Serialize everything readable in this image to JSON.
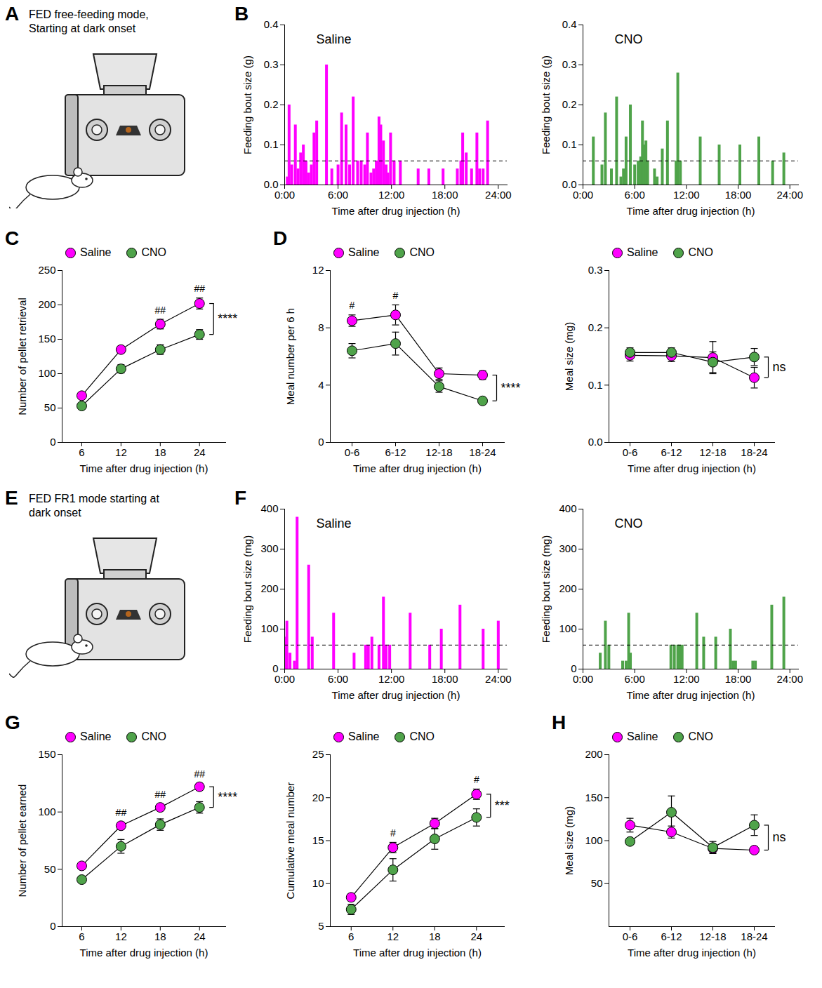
{
  "chart_data": [
    {
      "panel": "B",
      "type": "bar",
      "title": "Saline",
      "x_label": "Time after drug injection (h)",
      "y_label": "Feeding bout size (g)",
      "xlim": [
        0,
        25
      ],
      "xticks": [
        {
          "value": 0,
          "label": "0:00"
        },
        {
          "value": 6,
          "label": "6:00"
        },
        {
          "value": 12,
          "label": "12:00"
        },
        {
          "value": 18,
          "label": "18:00"
        },
        {
          "value": 24,
          "label": "24:00"
        }
      ],
      "ylim": [
        0,
        0.4
      ],
      "yticks": [
        {
          "value": 0,
          "label": "0.0"
        },
        0.1,
        0.2,
        0.3,
        0.4
      ],
      "reference_line": 0.06,
      "color": "#ff00ff",
      "x": [
        0.3,
        0.5,
        0.8,
        1.2,
        1.5,
        1.8,
        2.1,
        2.4,
        2.7,
        3.0,
        3.3,
        3.6,
        4.7,
        5.3,
        6.0,
        6.4,
        6.9,
        7.3,
        7.7,
        8.2,
        8.6,
        9.0,
        9.3,
        9.7,
        10.0,
        10.3,
        10.6,
        10.8,
        11.1,
        11.4,
        11.6,
        11.9,
        12.3,
        13.0,
        15.0,
        16.2,
        17.8,
        19.4,
        19.8,
        20.0,
        20.4,
        21.0,
        21.6,
        21.9,
        22.3,
        22.8
      ],
      "values": [
        0.02,
        0.2,
        0.05,
        0.15,
        0.04,
        0.08,
        0.1,
        0.06,
        0.03,
        0.05,
        0.13,
        0.16,
        0.3,
        0.04,
        0.05,
        0.18,
        0.15,
        0.05,
        0.22,
        0.06,
        0.06,
        0.05,
        0.13,
        0.03,
        0.04,
        0.06,
        0.17,
        0.15,
        0.11,
        0.05,
        0.03,
        0.13,
        0.06,
        0.06,
        0.04,
        0.04,
        0.04,
        0.04,
        0.06,
        0.13,
        0.08,
        0.04,
        0.13,
        0.04,
        0.04,
        0.16
      ]
    },
    {
      "type": "bar",
      "title": "CNO",
      "x_label": "Time after drug injection (h)",
      "y_label": "Feeding bout size (g)",
      "xlim": [
        0,
        25
      ],
      "xticks": [
        {
          "value": 0,
          "label": "0:00"
        },
        {
          "value": 6,
          "label": "6:00"
        },
        {
          "value": 12,
          "label": "12:00"
        },
        {
          "value": 18,
          "label": "18:00"
        },
        {
          "value": 24,
          "label": "24:00"
        }
      ],
      "ylim": [
        0,
        0.4
      ],
      "yticks": [
        {
          "value": 0,
          "label": "0.0"
        },
        0.1,
        0.2,
        0.3,
        0.4
      ],
      "reference_line": 0.06,
      "color": "#4fa34a",
      "x": [
        1.2,
        2.2,
        2.6,
        3.3,
        3.9,
        4.4,
        4.7,
        5.0,
        5.5,
        6.0,
        6.4,
        6.7,
        6.9,
        7.1,
        7.3,
        7.5,
        8.3,
        8.6,
        9.2,
        9.8,
        10.8,
        11.0,
        11.3,
        13.6,
        15.8,
        18.2,
        20.4,
        22.0,
        23.3
      ],
      "values": [
        0.12,
        0.05,
        0.18,
        0.04,
        0.22,
        0.02,
        0.04,
        0.12,
        0.2,
        0.05,
        0.06,
        0.07,
        0.16,
        0.1,
        0.11,
        0.06,
        0.04,
        0.02,
        0.09,
        0.16,
        0.06,
        0.28,
        0.06,
        0.12,
        0.1,
        0.1,
        0.12,
        0.06,
        0.08
      ]
    },
    {
      "panel": "C",
      "type": "line",
      "x_label": "Time after drug injection (h)",
      "y_label": "Number of pellet retrieval",
      "x": [
        6,
        12,
        18,
        24
      ],
      "xlim": [
        3,
        28
      ],
      "xticks": [
        6,
        12,
        18,
        24
      ],
      "ylim": [
        0,
        250
      ],
      "yticks": [
        0,
        50,
        100,
        150,
        200,
        250
      ],
      "legend": "top",
      "series": [
        {
          "name": "Saline",
          "color": "#ff00ff",
          "values": [
            68,
            135,
            172,
            202
          ],
          "errors": [
            3,
            5,
            7,
            8
          ]
        },
        {
          "name": "CNO",
          "color": "#4fa34a",
          "values": [
            53,
            107,
            135,
            157
          ],
          "errors": [
            4,
            6,
            7,
            7
          ]
        }
      ],
      "annotations": [
        {
          "x": 18,
          "text": "##"
        },
        {
          "x": 24,
          "text": "##"
        }
      ],
      "comparison": "****"
    },
    {
      "panel": "D",
      "type": "line",
      "x_label": "Time after drug injection (h)",
      "y_label": "Meal number per 6 h",
      "categories": [
        "0-6",
        "6-12",
        "12-18",
        "18-24"
      ],
      "ylim": [
        0,
        12
      ],
      "yticks": [
        0,
        4,
        8,
        12
      ],
      "legend": "top",
      "series": [
        {
          "name": "Saline",
          "color": "#ff00ff",
          "values": [
            8.5,
            8.9,
            4.8,
            4.7
          ],
          "errors": [
            0.4,
            0.7,
            0.4,
            0.3
          ]
        },
        {
          "name": "CNO",
          "color": "#4fa34a",
          "values": [
            6.4,
            6.9,
            3.9,
            2.9
          ],
          "errors": [
            0.5,
            0.8,
            0.4,
            0.2
          ]
        }
      ],
      "annotations": [
        {
          "x": "0-6",
          "text": "#"
        },
        {
          "x": "6-12",
          "text": "#"
        }
      ],
      "comparison": "****"
    },
    {
      "type": "line",
      "x_label": "Time after drug injection (h)",
      "y_label": "Meal size (mg)",
      "categories": [
        "0-6",
        "6-12",
        "12-18",
        "18-24"
      ],
      "ylim": [
        0,
        0.3
      ],
      "yticks": [
        {
          "value": 0,
          "label": "0.0"
        },
        0.1,
        0.2,
        0.3
      ],
      "legend": "top",
      "series": [
        {
          "name": "Saline",
          "color": "#ff00ff",
          "values": [
            0.152,
            0.151,
            0.148,
            0.113
          ],
          "errors": [
            0.01,
            0.01,
            0.028,
            0.018
          ]
        },
        {
          "name": "CNO",
          "color": "#4fa34a",
          "values": [
            0.157,
            0.157,
            0.14,
            0.149
          ],
          "errors": [
            0.008,
            0.008,
            0.018,
            0.015
          ]
        }
      ],
      "comparison": "ns"
    },
    {
      "panel": "F",
      "type": "bar",
      "title": "Saline",
      "x_label": "Time after drug injection (h)",
      "y_label": "Feeding bout size (mg)",
      "xlim": [
        0,
        25
      ],
      "xticks": [
        {
          "value": 0,
          "label": "0:00"
        },
        {
          "value": 6,
          "label": "6:00"
        },
        {
          "value": 12,
          "label": "12:00"
        },
        {
          "value": 18,
          "label": "18:00"
        },
        {
          "value": 24,
          "label": "24:00"
        }
      ],
      "ylim": [
        0,
        400
      ],
      "yticks": [
        0,
        100,
        200,
        300,
        400
      ],
      "reference_line": 60,
      "color": "#ff00ff",
      "x": [
        0.1,
        0.25,
        0.6,
        1.1,
        1.4,
        2.7,
        3.1,
        5.5,
        7.8,
        9.1,
        9.4,
        9.8,
        10.6,
        11.1,
        11.4,
        11.8,
        14.1,
        16.3,
        17.6,
        19.7,
        22.3,
        24.0
      ],
      "values": [
        80,
        120,
        40,
        20,
        380,
        260,
        80,
        140,
        40,
        60,
        60,
        80,
        60,
        180,
        60,
        60,
        140,
        60,
        100,
        160,
        100,
        120
      ]
    },
    {
      "type": "bar",
      "title": "CNO",
      "x_label": "Time after drug injection (h)",
      "y_label": "Feeding bout size (mg)",
      "xlim": [
        0,
        25
      ],
      "xticks": [
        {
          "value": 0,
          "label": "0:00"
        },
        {
          "value": 6,
          "label": "6:00"
        },
        {
          "value": 12,
          "label": "12:00"
        },
        {
          "value": 18,
          "label": "18:00"
        },
        {
          "value": 24,
          "label": "24:00"
        }
      ],
      "ylim": [
        0,
        400
      ],
      "yticks": [
        0,
        100,
        200,
        300,
        400
      ],
      "reference_line": 60,
      "color": "#4fa34a",
      "x": [
        2.0,
        2.6,
        3.0,
        4.6,
        5.0,
        5.3,
        5.5,
        10.2,
        10.6,
        11.0,
        11.2,
        11.5,
        13.2,
        14.0,
        15.4,
        17.1,
        17.4,
        17.7,
        19.7,
        20.0,
        21.9,
        23.3
      ],
      "values": [
        40,
        120,
        60,
        20,
        20,
        140,
        40,
        60,
        60,
        60,
        60,
        60,
        140,
        80,
        80,
        100,
        20,
        20,
        20,
        20,
        160,
        180
      ]
    },
    {
      "panel": "G",
      "type": "line",
      "x_label": "Time after drug injection (h)",
      "y_label": "Number of pellet earned",
      "x": [
        6,
        12,
        18,
        24
      ],
      "xlim": [
        3,
        28
      ],
      "xticks": [
        6,
        12,
        18,
        24
      ],
      "ylim": [
        0,
        150
      ],
      "yticks": [
        0,
        50,
        100,
        150
      ],
      "legend": "top",
      "series": [
        {
          "name": "Saline",
          "color": "#ff00ff",
          "values": [
            53,
            88,
            104,
            122
          ],
          "errors": [
            2,
            3,
            3,
            3
          ]
        },
        {
          "name": "CNO",
          "color": "#4fa34a",
          "values": [
            41,
            70,
            89,
            104
          ],
          "errors": [
            3,
            6,
            5,
            5
          ]
        }
      ],
      "annotations": [
        {
          "x": 12,
          "text": "##"
        },
        {
          "x": 18,
          "text": "##"
        },
        {
          "x": 24,
          "text": "##"
        }
      ],
      "comparison": "****"
    },
    {
      "type": "line",
      "x_label": "Time after drug injection (h)",
      "y_label": "Cumulative meal number",
      "x": [
        6,
        12,
        18,
        24
      ],
      "xlim": [
        3,
        28
      ],
      "xticks": [
        6,
        12,
        18,
        24
      ],
      "ylim": [
        5,
        25
      ],
      "yticks": [
        5,
        10,
        15,
        20,
        25
      ],
      "legend": "top",
      "series": [
        {
          "name": "Saline",
          "color": "#ff00ff",
          "values": [
            8.4,
            14.2,
            17,
            20.4
          ],
          "errors": [
            0.4,
            0.6,
            0.6,
            0.6
          ]
        },
        {
          "name": "CNO",
          "color": "#4fa34a",
          "values": [
            7,
            11.6,
            15.2,
            17.7
          ],
          "errors": [
            0.6,
            1.3,
            1.2,
            1.0
          ]
        }
      ],
      "annotations": [
        {
          "x": 12,
          "text": "#"
        },
        {
          "x": 24,
          "text": "#"
        }
      ],
      "comparison": "***"
    },
    {
      "panel": "H",
      "type": "line",
      "x_label": "Time after drug injection (h)",
      "y_label": "Meal size (mg)",
      "categories": [
        "0-6",
        "6-12",
        "12-18",
        "18-24"
      ],
      "ylim": [
        0,
        200
      ],
      "yticks": [
        50,
        100,
        150,
        200
      ],
      "legend": "top",
      "series": [
        {
          "name": "Saline",
          "color": "#ff00ff",
          "values": [
            118,
            110,
            91,
            89
          ],
          "errors": [
            8,
            7,
            5,
            4
          ]
        },
        {
          "name": "CNO",
          "color": "#4fa34a",
          "values": [
            99,
            133,
            92,
            118
          ],
          "errors": [
            3,
            19,
            7,
            12
          ]
        }
      ],
      "comparison": "ns"
    }
  ],
  "illustrations": [
    {
      "panel": "A",
      "text": "FED free-feeding mode, Starting at dark onset"
    },
    {
      "panel": "E",
      "text": "FED FR1 mode starting at dark onset"
    }
  ]
}
